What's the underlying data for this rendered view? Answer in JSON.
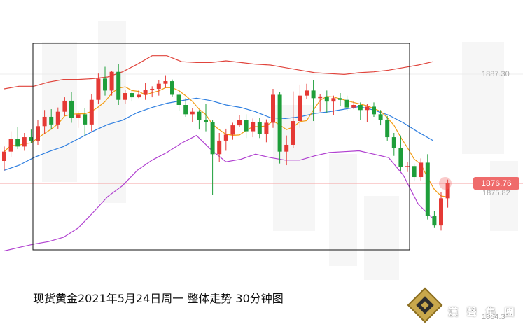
{
  "caption": "现货黄金2021年5月24日周一 整体走势  30分钟图",
  "logo": {
    "text": "漢 聲 集 團",
    "icon": "diamond-gold-logo-icon"
  },
  "price_labels": {
    "upper": "1887.30",
    "lower_ref": "1875.82",
    "bottom": "1864.3"
  },
  "current_price": "1876.76",
  "colors": {
    "up": "#e53935",
    "down": "#1e9e3a",
    "boll_upper": "#e0443c",
    "boll_mid": "#2f7fe0",
    "boll_lower": "#b040d0",
    "ma": "#f39c12",
    "bg_wm": "#f2f2f2"
  },
  "chart_data": {
    "type": "candlestick",
    "title": "现货黄金2021年5月24日周一 整体走势  30分钟图",
    "ylim": [
      1859,
      1892
    ],
    "candles": [
      [
        1875.5,
        1877.2,
        1874.4,
        1876.6
      ],
      [
        1876.6,
        1879.0,
        1876.0,
        1878.1
      ],
      [
        1878.1,
        1879.5,
        1876.9,
        1877.2
      ],
      [
        1877.2,
        1878.8,
        1876.7,
        1878.3
      ],
      [
        1878.3,
        1879.2,
        1877.6,
        1877.9
      ],
      [
        1877.9,
        1880.3,
        1877.4,
        1879.6
      ],
      [
        1879.6,
        1881.5,
        1878.7,
        1880.7
      ],
      [
        1880.7,
        1881.6,
        1879.2,
        1879.8
      ],
      [
        1879.8,
        1881.8,
        1879.3,
        1881.3
      ],
      [
        1881.3,
        1883.0,
        1880.8,
        1882.6
      ],
      [
        1882.6,
        1883.6,
        1880.0,
        1880.6
      ],
      [
        1880.6,
        1881.4,
        1879.4,
        1881.0
      ],
      [
        1881.0,
        1881.7,
        1878.4,
        1879.8
      ],
      [
        1879.8,
        1883.4,
        1879.0,
        1882.7
      ],
      [
        1882.7,
        1885.8,
        1882.2,
        1885.2
      ],
      [
        1885.2,
        1886.6,
        1883.2,
        1883.8
      ],
      [
        1883.8,
        1886.1,
        1883.2,
        1886.0
      ],
      [
        1886.0,
        1886.9,
        1882.1,
        1882.7
      ],
      [
        1882.7,
        1883.9,
        1882.2,
        1883.5
      ],
      [
        1883.5,
        1883.9,
        1882.5,
        1883.0
      ],
      [
        1883.0,
        1883.8,
        1882.9,
        1883.3
      ],
      [
        1883.3,
        1884.7,
        1882.7,
        1883.9
      ],
      [
        1883.9,
        1884.3,
        1883.0,
        1884.0
      ],
      [
        1884.0,
        1885.0,
        1883.2,
        1884.6
      ],
      [
        1884.6,
        1885.6,
        1884.1,
        1884.9
      ],
      [
        1884.9,
        1885.1,
        1883.1,
        1883.3
      ],
      [
        1883.3,
        1883.9,
        1881.4,
        1882.1
      ],
      [
        1882.1,
        1882.9,
        1880.7,
        1881.0
      ],
      [
        1881.0,
        1881.7,
        1880.1,
        1881.3
      ],
      [
        1881.3,
        1881.5,
        1879.2,
        1880.3
      ],
      [
        1880.3,
        1882.2,
        1879.0,
        1880.1
      ],
      [
        1880.1,
        1880.3,
        1871.5,
        1876.3
      ],
      [
        1876.3,
        1878.8,
        1875.4,
        1877.9
      ],
      [
        1877.9,
        1879.3,
        1876.7,
        1878.6
      ],
      [
        1878.6,
        1880.0,
        1878.0,
        1879.7
      ],
      [
        1879.7,
        1880.9,
        1879.5,
        1880.3
      ],
      [
        1880.3,
        1881.0,
        1878.2,
        1879.0
      ],
      [
        1879.0,
        1880.5,
        1878.3,
        1880.1
      ],
      [
        1880.1,
        1880.6,
        1878.2,
        1878.7
      ],
      [
        1878.7,
        1880.4,
        1877.7,
        1880.0
      ],
      [
        1880.0,
        1884.0,
        1879.4,
        1883.3
      ],
      [
        1883.3,
        1883.6,
        1875.2,
        1876.6
      ],
      [
        1876.6,
        1878.5,
        1875.0,
        1877.4
      ],
      [
        1877.4,
        1883.7,
        1877.0,
        1880.2
      ],
      [
        1880.2,
        1884.5,
        1879.4,
        1883.2
      ],
      [
        1883.2,
        1884.6,
        1882.8,
        1883.8
      ],
      [
        1883.8,
        1885.0,
        1880.2,
        1882.9
      ],
      [
        1882.9,
        1883.4,
        1881.3,
        1883.1
      ],
      [
        1883.1,
        1883.8,
        1881.2,
        1882.5
      ],
      [
        1882.5,
        1883.2,
        1880.9,
        1882.9
      ],
      [
        1882.9,
        1883.5,
        1882.0,
        1882.7
      ],
      [
        1882.7,
        1883.2,
        1881.4,
        1881.8
      ],
      [
        1881.8,
        1882.6,
        1881.6,
        1882.1
      ],
      [
        1882.1,
        1882.4,
        1880.3,
        1881.5
      ],
      [
        1881.5,
        1882.2,
        1880.1,
        1881.9
      ],
      [
        1881.9,
        1882.4,
        1880.7,
        1881.0
      ],
      [
        1881.0,
        1881.5,
        1879.7,
        1880.3
      ],
      [
        1880.3,
        1880.8,
        1877.9,
        1878.3
      ],
      [
        1878.3,
        1878.8,
        1876.1,
        1877.0
      ],
      [
        1877.0,
        1878.5,
        1874.3,
        1874.8
      ],
      [
        1874.8,
        1875.4,
        1874.2,
        1874.9
      ],
      [
        1874.9,
        1875.2,
        1873.1,
        1873.6
      ],
      [
        1873.6,
        1875.8,
        1873.2,
        1875.3
      ],
      [
        1875.3,
        1876.3,
        1868.6,
        1869.0
      ],
      [
        1869.0,
        1869.6,
        1867.6,
        1867.9
      ],
      [
        1867.9,
        1871.8,
        1867.3,
        1871.1
      ],
      [
        1871.1,
        1873.3,
        1870.0,
        1872.9
      ]
    ],
    "bollinger": {
      "upper": [
        1884.0,
        1884.3,
        1884.3,
        1884.8,
        1885.1,
        1885.1,
        1885.2,
        1885.4,
        1886.0,
        1886.9,
        1887.9,
        1887.9,
        1887.2,
        1887.1,
        1887.1,
        1887.3,
        1887.1,
        1886.9,
        1886.8,
        1886.5,
        1886.2,
        1885.9,
        1885.8,
        1885.7,
        1885.9,
        1886.0,
        1886.2,
        1886.5,
        1886.8,
        1887.2
      ],
      "mid": [
        1874.4,
        1875.0,
        1875.9,
        1876.6,
        1877.2,
        1878.1,
        1879.0,
        1879.8,
        1880.3,
        1881.2,
        1881.8,
        1882.3,
        1882.6,
        1882.9,
        1882.6,
        1882.1,
        1881.8,
        1881.3,
        1880.6,
        1880.5,
        1880.7,
        1881.1,
        1881.3,
        1881.6,
        1881.9,
        1881.5,
        1880.9,
        1880.0,
        1878.9,
        1877.9
      ],
      "lower": [
        1864.9,
        1865.3,
        1865.7,
        1866.0,
        1866.5,
        1867.6,
        1869.4,
        1871.3,
        1872.6,
        1874.4,
        1875.6,
        1876.5,
        1877.6,
        1878.5,
        1876.8,
        1875.4,
        1875.7,
        1876.3,
        1875.9,
        1875.6,
        1875.6,
        1876.1,
        1876.5,
        1876.6,
        1876.7,
        1876.3,
        1875.9,
        1873.8,
        1870.4,
        1868.7
      ]
    }
  }
}
